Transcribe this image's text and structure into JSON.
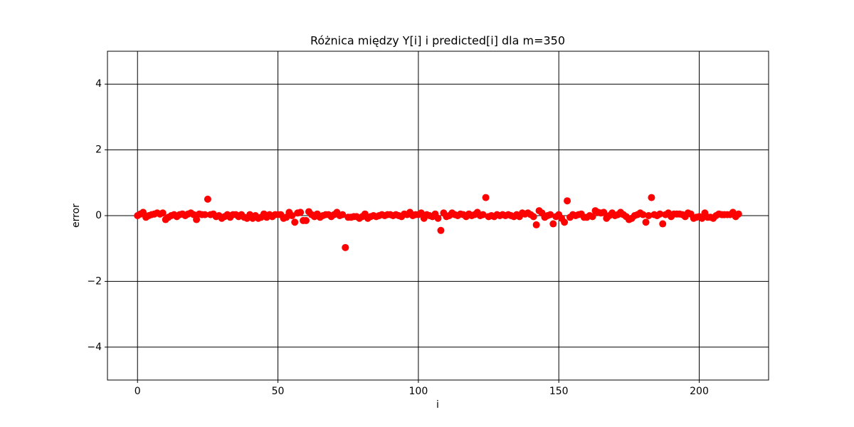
{
  "chart_data": {
    "type": "scatter",
    "title": "Różnica między Y[i] i predicted[i] dla m=350",
    "x_label": "i",
    "y_label": "error",
    "color": "#ff0000",
    "grid": true,
    "xlim": [
      -10.7,
      224.7
    ],
    "ylim": [
      -5,
      5
    ],
    "xticks": [
      0,
      50,
      100,
      150,
      200
    ],
    "yticks": [
      {
        "value": -4,
        "label": "−4"
      },
      {
        "value": -2,
        "label": "−2"
      },
      0,
      2,
      4
    ],
    "x": [
      0,
      1,
      2,
      3,
      4,
      5,
      6,
      7,
      8,
      9,
      10,
      11,
      12,
      13,
      14,
      15,
      16,
      17,
      18,
      19,
      20,
      21,
      22,
      23,
      24,
      25,
      26,
      27,
      28,
      29,
      30,
      31,
      32,
      33,
      34,
      35,
      36,
      37,
      38,
      39,
      40,
      41,
      42,
      43,
      44,
      45,
      46,
      47,
      48,
      49,
      50,
      51,
      52,
      53,
      54,
      55,
      56,
      57,
      58,
      59,
      60,
      61,
      62,
      63,
      64,
      65,
      66,
      67,
      68,
      69,
      70,
      71,
      72,
      73,
      74,
      75,
      76,
      77,
      78,
      79,
      80,
      81,
      82,
      83,
      84,
      85,
      86,
      87,
      88,
      89,
      90,
      91,
      92,
      93,
      94,
      95,
      96,
      97,
      98,
      99,
      100,
      101,
      102,
      103,
      104,
      105,
      106,
      107,
      108,
      109,
      110,
      111,
      112,
      113,
      114,
      115,
      116,
      117,
      118,
      119,
      120,
      121,
      122,
      123,
      124,
      125,
      126,
      127,
      128,
      129,
      130,
      131,
      132,
      133,
      134,
      135,
      136,
      137,
      138,
      139,
      140,
      141,
      142,
      143,
      144,
      145,
      146,
      147,
      148,
      149,
      150,
      151,
      152,
      153,
      154,
      155,
      156,
      157,
      158,
      159,
      160,
      161,
      162,
      163,
      164,
      165,
      166,
      167,
      168,
      169,
      170,
      171,
      172,
      173,
      174,
      175,
      176,
      177,
      178,
      179,
      180,
      181,
      182,
      183,
      184,
      185,
      186,
      187,
      188,
      189,
      190,
      191,
      192,
      193,
      194,
      195,
      196,
      197,
      198,
      199,
      200,
      201,
      202,
      203,
      204,
      205,
      206,
      207,
      208,
      209,
      210,
      211,
      212,
      213,
      214
    ],
    "values": [
      0,
      0.05,
      0.1,
      -0.05,
      0,
      0.03,
      0.05,
      0.08,
      0.05,
      0.08,
      -0.12,
      -0.05,
      0,
      0.03,
      -0.03,
      0.03,
      0.05,
      0,
      0.05,
      0.08,
      0.03,
      -0.12,
      0.05,
      0.03,
      0.03,
      0.5,
      0.03,
      0.05,
      -0.03,
      0,
      -0.08,
      -0.03,
      0.03,
      -0.05,
      0.03,
      0.03,
      -0.03,
      0.03,
      -0.05,
      -0.08,
      0.03,
      -0.08,
      0,
      -0.08,
      -0.05,
      0.05,
      -0.05,
      0.03,
      -0.03,
      0.03,
      0.03,
      0.03,
      -0.08,
      -0.05,
      0.1,
      0,
      -0.2,
      0.08,
      0.1,
      -0.15,
      -0.15,
      0.12,
      0.03,
      -0.03,
      0.05,
      -0.05,
      0,
      0.03,
      0.03,
      -0.03,
      0.03,
      0.1,
      0,
      0.03,
      -0.97,
      -0.05,
      -0.05,
      -0.03,
      -0.03,
      -0.08,
      -0.03,
      0.05,
      -0.08,
      -0.03,
      0,
      -0.03,
      0,
      0.03,
      0,
      0.03,
      0.03,
      0,
      0.03,
      0,
      -0.03,
      0.05,
      0.03,
      0.1,
      0,
      0.03,
      0.03,
      0.08,
      -0.08,
      0.03,
      0,
      -0.03,
      0.05,
      -0.08,
      -0.45,
      0.08,
      -0.03,
      0,
      0.08,
      0.03,
      0,
      0.05,
      0.03,
      -0.03,
      0.05,
      0,
      0.03,
      0.1,
      0,
      0.03,
      0.55,
      -0.03,
      0,
      -0.03,
      0.03,
      0,
      0.03,
      0,
      0.03,
      0,
      -0.03,
      0.03,
      -0.03,
      0.08,
      0.05,
      0.08,
      0.03,
      -0.03,
      -0.28,
      0.15,
      0.08,
      -0.05,
      0,
      0.03,
      -0.25,
      -0.03,
      0.03,
      -0.08,
      -0.2,
      0.45,
      -0.05,
      0.03,
      0,
      0.03,
      0.05,
      -0.05,
      -0.05,
      0,
      -0.03,
      0.15,
      0.1,
      0.08,
      0.1,
      -0.08,
      0,
      0.08,
      0,
      0.03,
      0.1,
      0.03,
      -0.03,
      -0.12,
      -0.08,
      0,
      0.03,
      0.08,
      0.03,
      -0.2,
      0,
      0.55,
      0.03,
      0,
      0.05,
      -0.25,
      0.03,
      0.08,
      -0.03,
      0.05,
      0.05,
      0.05,
      0.03,
      -0.03,
      0.08,
      0.05,
      -0.08,
      -0.05,
      -0.03,
      -0.08,
      0.08,
      -0.05,
      -0.05,
      -0.08,
      0,
      0.05,
      0.03,
      0.03,
      0.03,
      0.03,
      0.1,
      -0.03,
      0.05
    ]
  }
}
